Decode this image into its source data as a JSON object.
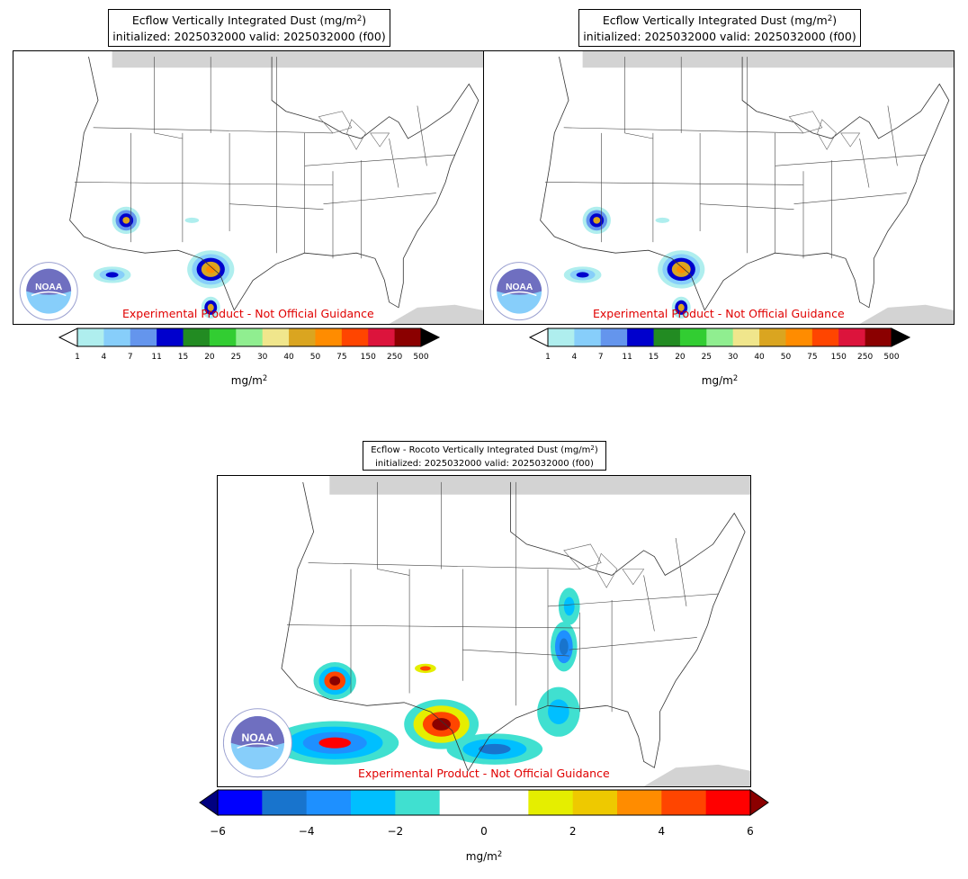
{
  "panels": [
    {
      "title_line1_prefix": "Ecflow Vertically Integrated Dust (mg/m",
      "title_line1_sup": "2",
      "title_line1_suffix": ")",
      "title_line2": "initialized: 2025032000 valid: 2025032000 (f00)",
      "disclaimer": "Experimental Product - Not Official Guidance",
      "logo_text": "NOAA",
      "colorbar": {
        "ticks": [
          "1",
          "4",
          "7",
          "11",
          "15",
          "20",
          "25",
          "30",
          "40",
          "50",
          "75",
          "150",
          "250",
          "500"
        ],
        "colors": [
          "#afeeee",
          "#87cefa",
          "#6495ed",
          "#0000cd",
          "#228b22",
          "#32cd32",
          "#90ee90",
          "#f0e68c",
          "#daa520",
          "#ff8c00",
          "#ff4500",
          "#dc143c",
          "#8b0000"
        ],
        "over_color": "#000000",
        "under_color": "#ffffff",
        "unit_prefix": "mg/m",
        "unit_sup": "2"
      }
    },
    {
      "title_line1_prefix": "Ecflow Vertically Integrated Dust (mg/m",
      "title_line1_sup": "2",
      "title_line1_suffix": ")",
      "title_line2": "initialized: 2025032000 valid: 2025032000 (f00)",
      "disclaimer": "Experimental Product - Not Official Guidance",
      "logo_text": "NOAA",
      "colorbar": {
        "ticks": [
          "1",
          "4",
          "7",
          "11",
          "15",
          "20",
          "25",
          "30",
          "40",
          "50",
          "75",
          "150",
          "250",
          "500"
        ],
        "colors": [
          "#afeeee",
          "#87cefa",
          "#6495ed",
          "#0000cd",
          "#228b22",
          "#32cd32",
          "#90ee90",
          "#f0e68c",
          "#daa520",
          "#ff8c00",
          "#ff4500",
          "#dc143c",
          "#8b0000"
        ],
        "over_color": "#000000",
        "under_color": "#ffffff",
        "unit_prefix": "mg/m",
        "unit_sup": "2"
      }
    },
    {
      "title_line1_prefix": "Ecflow - Rocoto Vertically Integrated Dust (mg/m",
      "title_line1_sup": "2",
      "title_line1_suffix": ")",
      "title_line2": "initialized: 2025032000 valid: 2025032000 (f00)",
      "disclaimer": "Experimental Product - Not Official Guidance",
      "logo_text": "NOAA",
      "colorbar": {
        "ticks": [
          "−6",
          "−4",
          "−2",
          "0",
          "2",
          "4",
          "6"
        ],
        "colors": [
          "#0000ff",
          "#1874cd",
          "#1e90ff",
          "#00bfff",
          "#40e0d0",
          "#ffffff",
          "#ffffff",
          "#e5ee00",
          "#eec900",
          "#ff8c00",
          "#ff4500",
          "#ff0000"
        ],
        "over_color": "#8b0000",
        "under_color": "#000080",
        "unit_prefix": "mg/m",
        "unit_sup": "2"
      }
    }
  ]
}
